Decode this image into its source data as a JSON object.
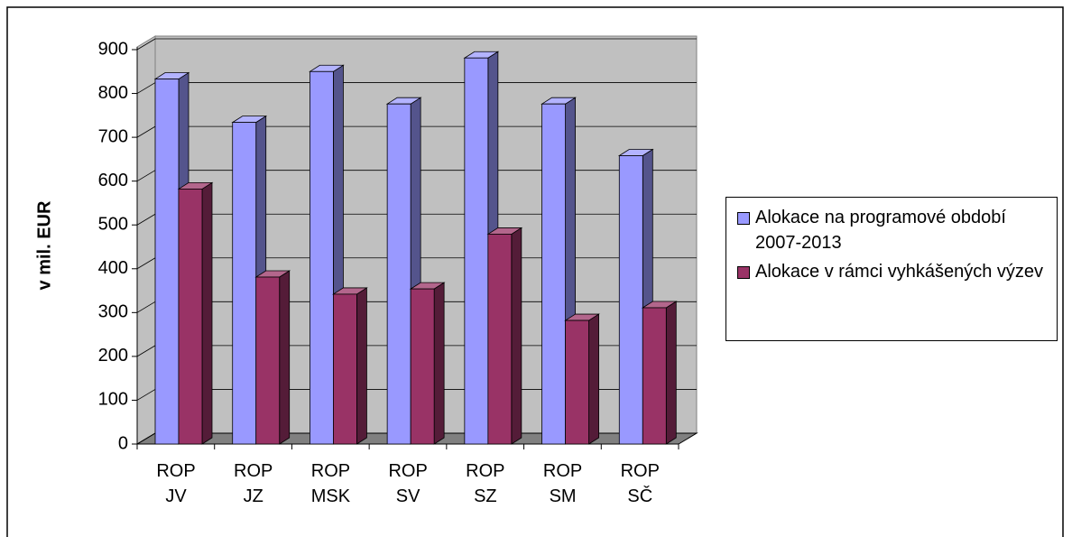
{
  "chart_data": {
    "type": "bar3d",
    "y_label": "v mil. EUR",
    "categories": [
      "ROP JV",
      "ROP JZ",
      "ROP MSK",
      "ROP SV",
      "ROP SZ",
      "ROP SM",
      "ROP SČ"
    ],
    "series": [
      {
        "name": "Alokace na programové období 2007-2013",
        "color": "#9999ff",
        "values": [
          833,
          734,
          850,
          776,
          881,
          776,
          658
        ]
      },
      {
        "name": "Alokace v rámci vyhkášených výzev",
        "color": "#993366",
        "values": [
          582,
          381,
          342,
          354,
          479,
          282,
          311
        ]
      }
    ],
    "ylim": [
      0,
      900
    ],
    "yticks": [
      0,
      100,
      200,
      300,
      400,
      500,
      600,
      700,
      800,
      900
    ],
    "grid": true,
    "legend": "right"
  }
}
